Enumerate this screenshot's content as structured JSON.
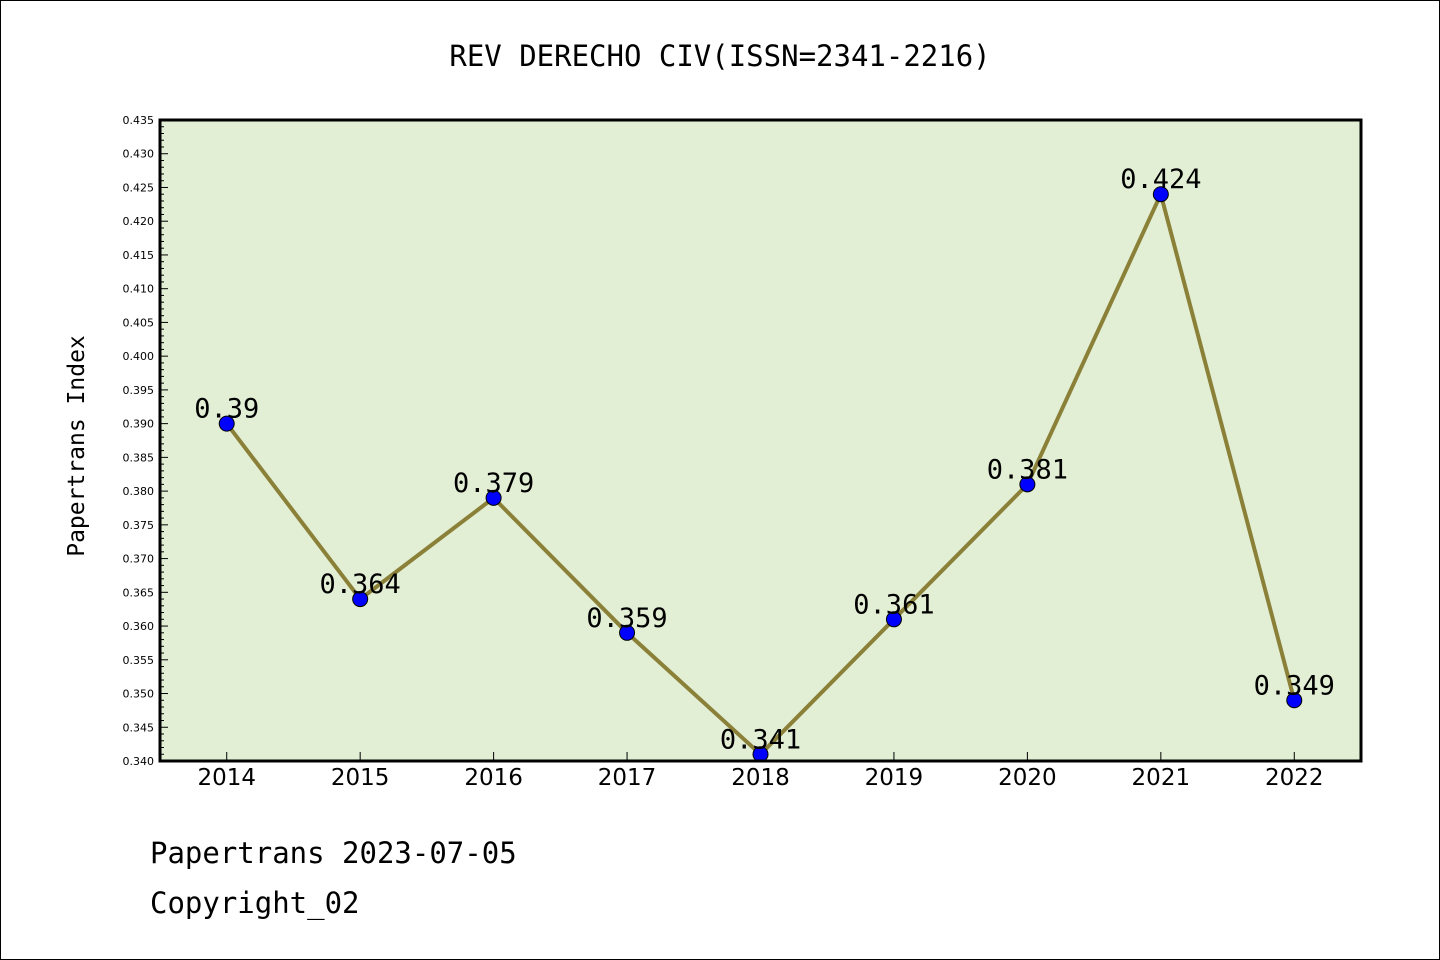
{
  "chart_data": {
    "type": "line",
    "title": "REV DERECHO CIV(ISSN=2341-2216)",
    "ylabel": "Papertrans Index",
    "xlabel": "",
    "categories": [
      "2014",
      "2015",
      "2016",
      "2017",
      "2018",
      "2019",
      "2020",
      "2021",
      "2022"
    ],
    "series": [
      {
        "values": [
          0.39,
          0.364,
          0.379,
          0.359,
          0.341,
          0.361,
          0.381,
          0.424,
          0.349
        ],
        "labels": [
          "0.39",
          "0.364",
          "0.379",
          "0.359",
          "0.341",
          "0.361",
          "0.381",
          "0.424",
          "0.349"
        ]
      }
    ],
    "ylim": [
      0.34,
      0.435
    ],
    "ytick_step": 0.005,
    "yticks": [
      "0.340",
      "0.345",
      "0.350",
      "0.355",
      "0.360",
      "0.365",
      "0.370",
      "0.375",
      "0.380",
      "0.385",
      "0.390",
      "0.395",
      "0.400",
      "0.405",
      "0.410",
      "0.415",
      "0.420",
      "0.425",
      "0.430",
      "0.435"
    ],
    "grid": false,
    "legend": "none",
    "colors": {
      "plot_background": "#e2efd5",
      "line": "#8b8038",
      "marker": "#0000ff"
    }
  },
  "footer": {
    "line1": "Papertrans 2023-07-05",
    "line2": "Copyright_02"
  }
}
